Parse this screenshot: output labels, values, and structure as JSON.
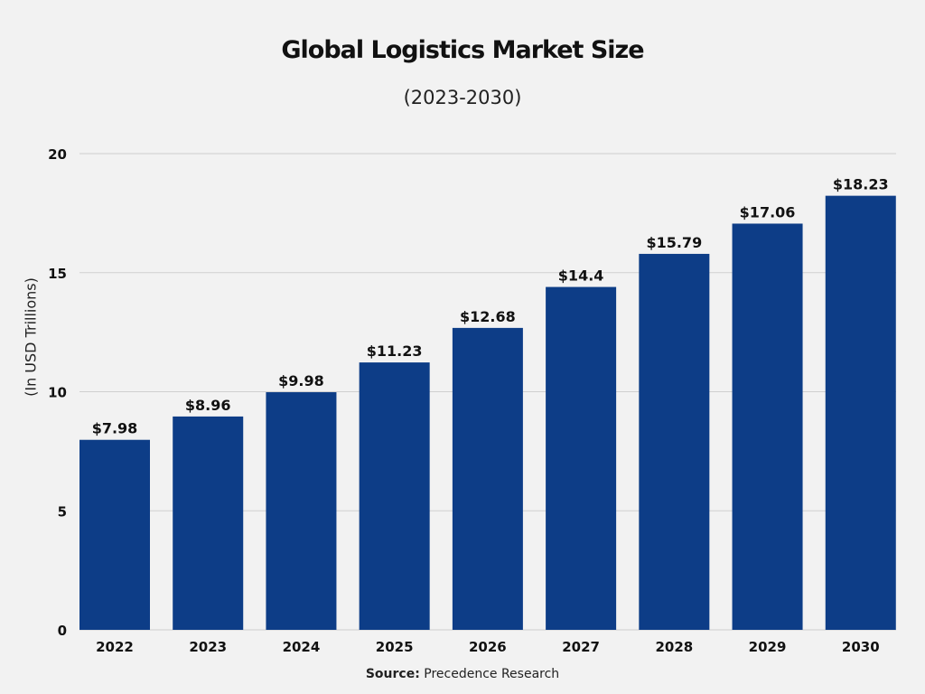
{
  "chart_data": {
    "type": "bar",
    "title": "Global Logistics Market Size",
    "subtitle": "(2023-2030)",
    "ylabel": "(In USD Trillions)",
    "xlabel": "",
    "categories": [
      "2022",
      "2023",
      "2024",
      "2025",
      "2026",
      "2027",
      "2028",
      "2029",
      "2030"
    ],
    "values": [
      7.98,
      8.96,
      9.98,
      11.23,
      12.68,
      14.4,
      15.79,
      17.06,
      18.23
    ],
    "data_labels": [
      "$7.98",
      "$8.96",
      "$9.98",
      "$11.23",
      "$12.68",
      "$14.4",
      "$15.79",
      "$17.06",
      "$18.23"
    ],
    "ylim": [
      0,
      20
    ],
    "yticks": [
      0,
      5,
      10,
      15,
      20
    ],
    "grid": true,
    "bar_color": "#0d3d87",
    "source_label": "Source:",
    "source_text": "Precedence Research"
  }
}
